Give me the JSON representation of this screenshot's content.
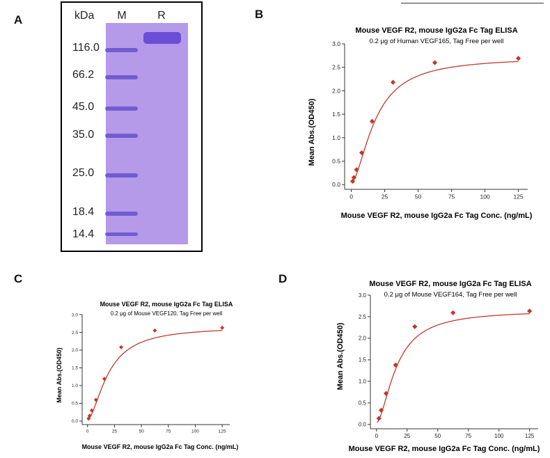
{
  "panels": {
    "A": "A",
    "B": "B",
    "C": "C",
    "D": "D"
  },
  "gel": {
    "unit_label": "kDa",
    "lane_marker": "M",
    "lane_reduced": "R",
    "marker_labels": [
      "116.0",
      "66.2",
      "45.0",
      "35.0",
      "25.0",
      "18.4",
      "14.4"
    ],
    "colors": {
      "gel": "#b49ae8",
      "band": "#5b47c9"
    }
  },
  "chart_data": [
    {
      "id": "B",
      "type": "scatter",
      "title": "Mouse VEGF R2, mouse IgG2a Fc Tag ELISA",
      "subtitle": "0.2 μg of Human VEGF165, Tag Free per well",
      "xlabel": "Mouse VEGF R2, mouse IgG2a Fc Tag Conc. (ng/mL)",
      "ylabel": "Mean Abs.(OD450)",
      "xlim": [
        -5,
        132
      ],
      "ylim": [
        -0.1,
        3.0
      ],
      "xticks": [
        0,
        25,
        50,
        75,
        100,
        125
      ],
      "yticks": [
        0.0,
        0.5,
        1.0,
        1.5,
        2.0,
        2.5,
        3.0
      ],
      "points": [
        [
          0.98,
          0.07
        ],
        [
          1.95,
          0.15
        ],
        [
          3.9,
          0.32
        ],
        [
          7.81,
          0.68
        ],
        [
          15.6,
          1.35
        ],
        [
          31.25,
          2.18
        ],
        [
          62.5,
          2.6
        ],
        [
          125,
          2.69
        ]
      ],
      "fit": {
        "bottom": 0.04,
        "top": 2.72,
        "ec50": 18.0,
        "hill": 1.7
      },
      "color": "#c0392b"
    },
    {
      "id": "C",
      "type": "scatter",
      "title": "Mouse VEGF R2, mouse IgG2a Fc Tag ELISA",
      "subtitle": "0.2 μg of Mouse VEGF120, Tag Free per well",
      "xlabel": "Mouse VEGF R2, mouse IgG2a Fc Tag Conc. (ng/mL)",
      "ylabel": "Mean Abs.(OD450)",
      "xlim": [
        -5,
        132
      ],
      "ylim": [
        -0.1,
        3.0
      ],
      "xticks": [
        0,
        25,
        50,
        75,
        100,
        125
      ],
      "yticks": [
        0.0,
        0.5,
        1.0,
        1.5,
        2.0,
        2.5,
        3.0
      ],
      "points": [
        [
          0.98,
          0.07
        ],
        [
          1.95,
          0.15
        ],
        [
          3.9,
          0.3
        ],
        [
          7.81,
          0.6
        ],
        [
          15.6,
          1.19
        ],
        [
          31.25,
          2.08
        ],
        [
          62.5,
          2.55
        ],
        [
          125,
          2.63
        ]
      ],
      "fit": {
        "bottom": 0.04,
        "top": 2.66,
        "ec50": 19.5,
        "hill": 1.7
      },
      "color": "#c0392b"
    },
    {
      "id": "D",
      "type": "scatter",
      "title": "Mouse VEGF R2, mouse IgG2a Fc Tag ELISA",
      "subtitle": "0.2 μg of Mouse VEGF164, Tag Free per well",
      "xlabel": "Mouse VEGF R2, mouse IgG2a Fc Tag Conc. (ng/mL)",
      "ylabel": "Mean Abs.(OD450)",
      "xlim": [
        -5,
        132
      ],
      "ylim": [
        -0.1,
        3.0
      ],
      "xticks": [
        0,
        25,
        50,
        75,
        100,
        125
      ],
      "yticks": [
        0.0,
        0.5,
        1.0,
        1.5,
        2.0,
        2.5,
        3.0
      ],
      "points": [
        [
          1.95,
          0.14
        ],
        [
          3.9,
          0.33
        ],
        [
          7.81,
          0.72
        ],
        [
          15.6,
          1.38
        ],
        [
          31.25,
          2.27
        ],
        [
          62.5,
          2.59
        ],
        [
          125,
          2.63
        ]
      ],
      "fit": {
        "bottom": 0.04,
        "top": 2.65,
        "ec50": 16.5,
        "hill": 1.7
      },
      "color": "#c0392b"
    }
  ]
}
